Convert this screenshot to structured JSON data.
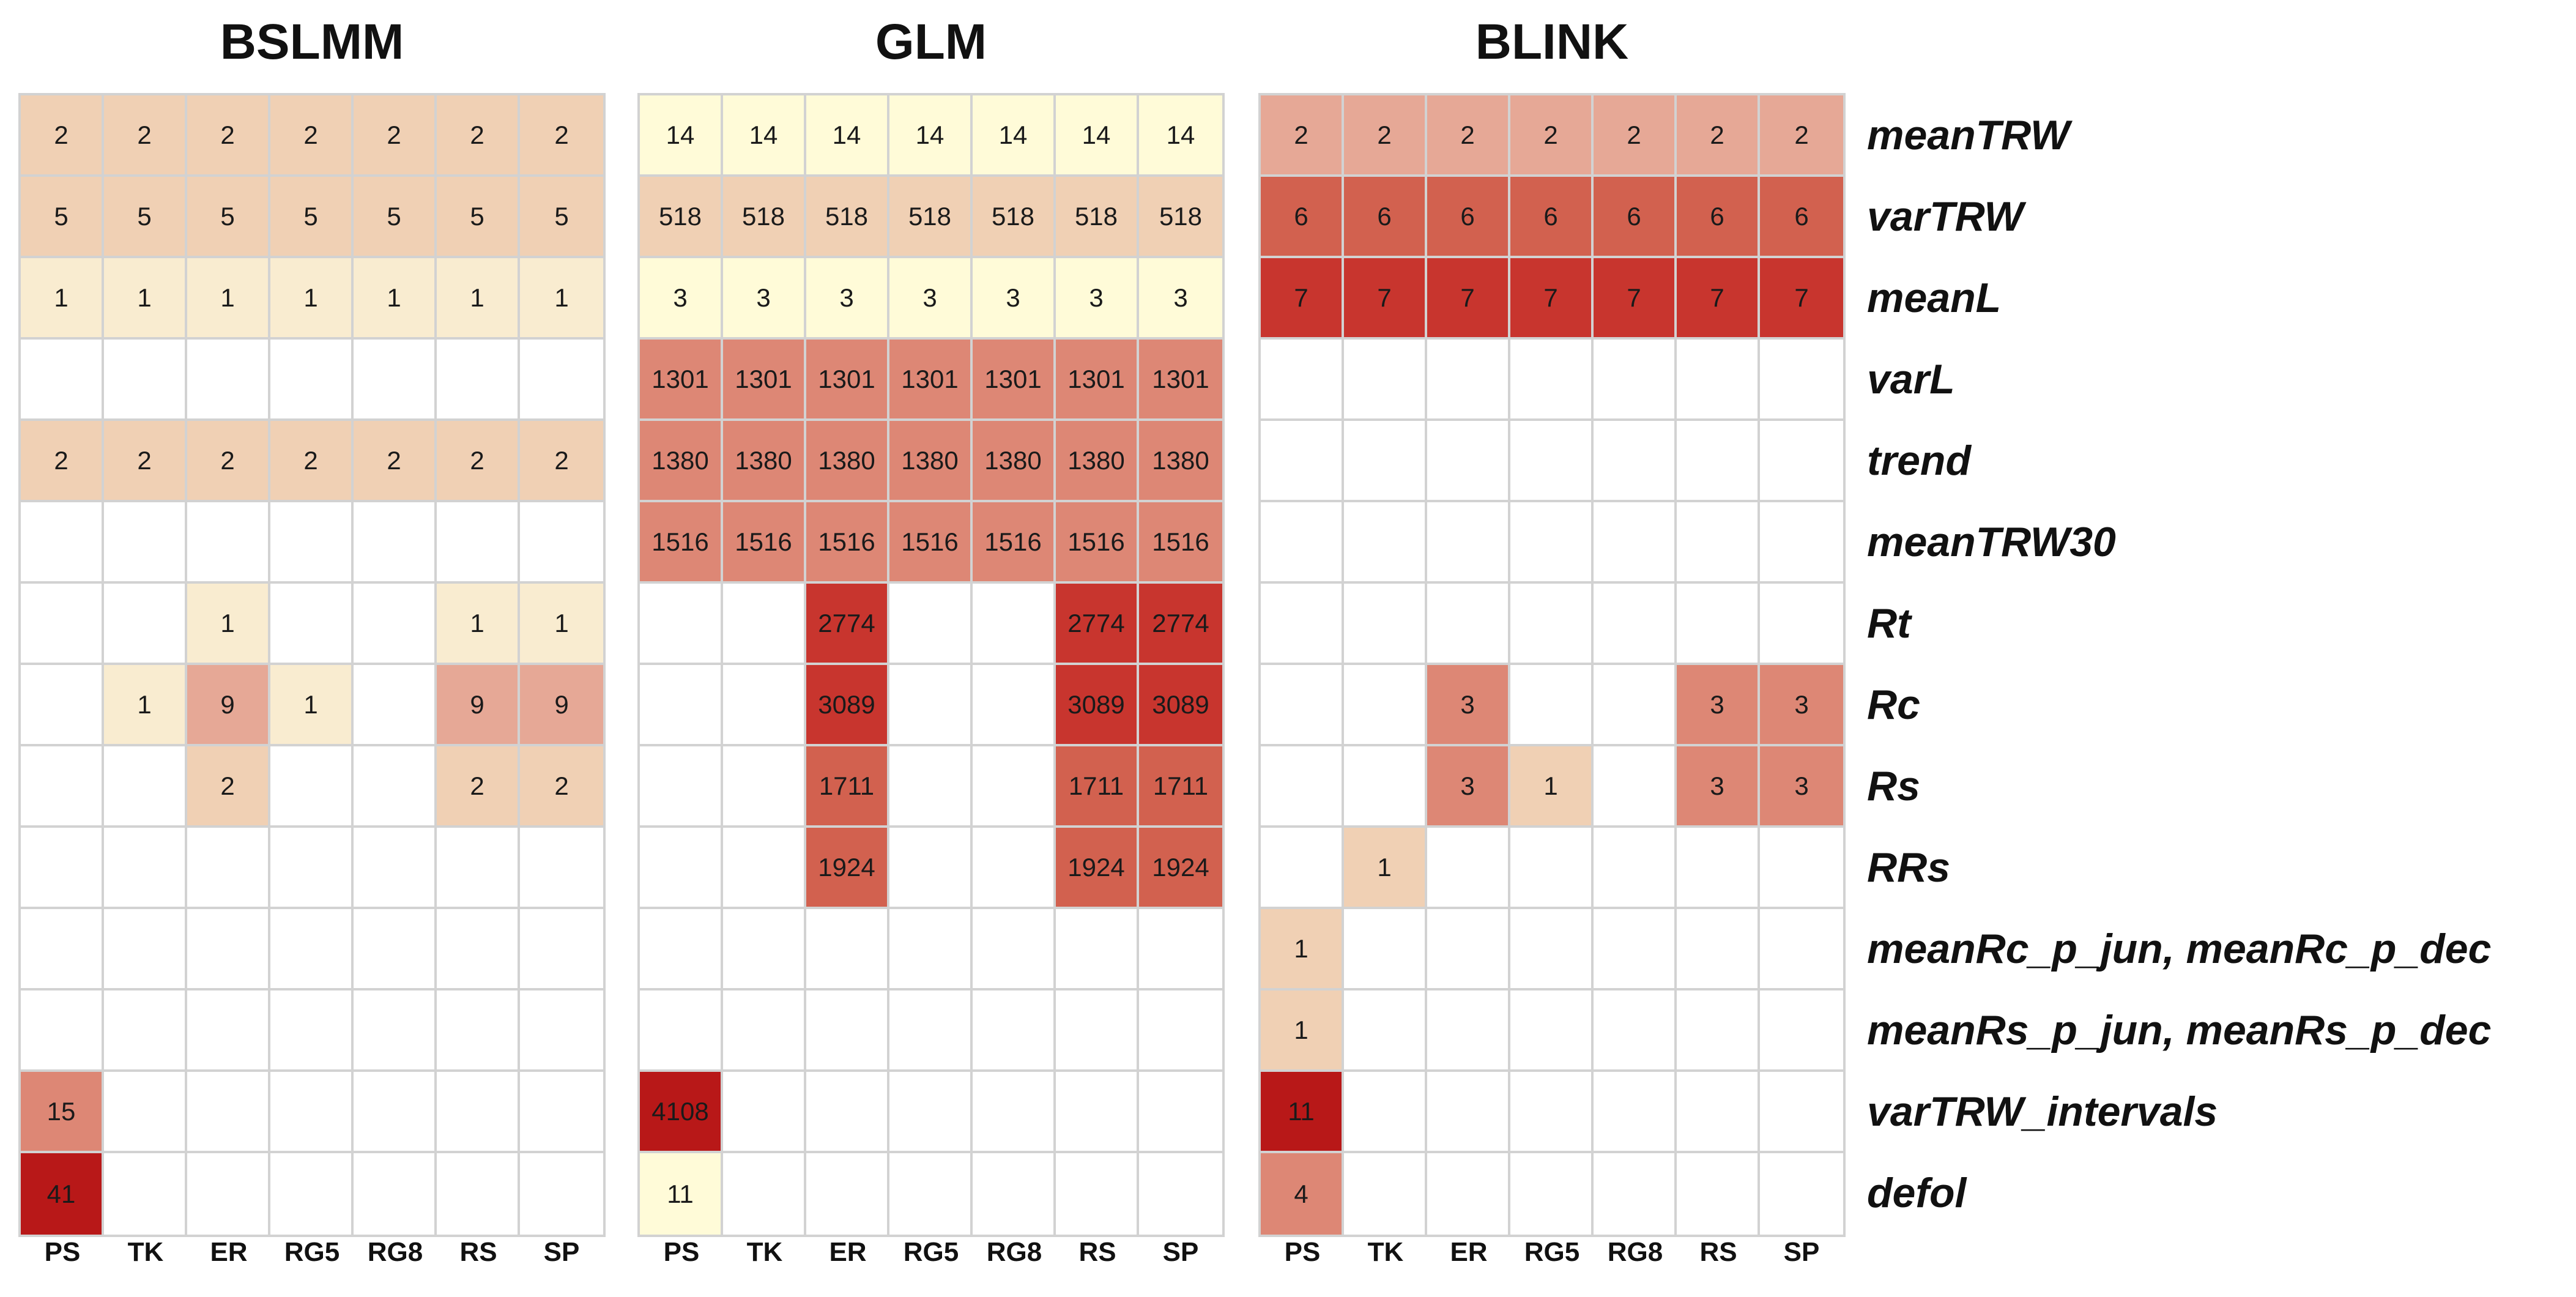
{
  "chart_data": {
    "type": "heatmap",
    "panels": [
      {
        "title": "BSLMM",
        "columns": [
          "PS",
          "TK",
          "ER",
          "RG5",
          "RG8",
          "RS",
          "SP"
        ],
        "rows": [
          [
            "2",
            "2",
            "2",
            "2",
            "2",
            "2",
            "2"
          ],
          [
            "5",
            "5",
            "5",
            "5",
            "5",
            "5",
            "5"
          ],
          [
            "1",
            "1",
            "1",
            "1",
            "1",
            "1",
            "1"
          ],
          [
            "",
            "",
            "",
            "",
            "",
            "",
            ""
          ],
          [
            "2",
            "2",
            "2",
            "2",
            "2",
            "2",
            "2"
          ],
          [
            "",
            "",
            "",
            "",
            "",
            "",
            ""
          ],
          [
            "",
            "",
            "1",
            "",
            "",
            "1",
            "1"
          ],
          [
            "",
            "1",
            "9",
            "1",
            "",
            "9",
            "9"
          ],
          [
            "",
            "",
            "2",
            "",
            "",
            "2",
            "2"
          ],
          [
            "",
            "",
            "",
            "",
            "",
            "",
            ""
          ],
          [
            "",
            "",
            "",
            "",
            "",
            "",
            ""
          ],
          [
            "",
            "",
            "",
            "",
            "",
            "",
            ""
          ],
          [
            "15",
            "",
            "",
            "",
            "",
            "",
            ""
          ],
          [
            "41",
            "",
            "",
            "",
            "",
            "",
            ""
          ]
        ]
      },
      {
        "title": "GLM",
        "columns": [
          "PS",
          "TK",
          "ER",
          "RG5",
          "RG8",
          "RS",
          "SP"
        ],
        "rows": [
          [
            "14",
            "14",
            "14",
            "14",
            "14",
            "14",
            "14"
          ],
          [
            "518",
            "518",
            "518",
            "518",
            "518",
            "518",
            "518"
          ],
          [
            "3",
            "3",
            "3",
            "3",
            "3",
            "3",
            "3"
          ],
          [
            "1301",
            "1301",
            "1301",
            "1301",
            "1301",
            "1301",
            "1301"
          ],
          [
            "1380",
            "1380",
            "1380",
            "1380",
            "1380",
            "1380",
            "1380"
          ],
          [
            "1516",
            "1516",
            "1516",
            "1516",
            "1516",
            "1516",
            "1516"
          ],
          [
            "",
            "",
            "2774",
            "",
            "",
            "2774",
            "2774"
          ],
          [
            "",
            "",
            "3089",
            "",
            "",
            "3089",
            "3089"
          ],
          [
            "",
            "",
            "1711",
            "",
            "",
            "1711",
            "1711"
          ],
          [
            "",
            "",
            "1924",
            "",
            "",
            "1924",
            "1924"
          ],
          [
            "",
            "",
            "",
            "",
            "",
            "",
            ""
          ],
          [
            "",
            "",
            "",
            "",
            "",
            "",
            ""
          ],
          [
            "4108",
            "",
            "",
            "",
            "",
            "",
            ""
          ],
          [
            "11",
            "",
            "",
            "",
            "",
            "",
            ""
          ]
        ]
      },
      {
        "title": "BLINK",
        "columns": [
          "PS",
          "TK",
          "ER",
          "RG5",
          "RG8",
          "RS",
          "SP"
        ],
        "rows": [
          [
            "2",
            "2",
            "2",
            "2",
            "2",
            "2",
            "2"
          ],
          [
            "6",
            "6",
            "6",
            "6",
            "6",
            "6",
            "6"
          ],
          [
            "7",
            "7",
            "7",
            "7",
            "7",
            "7",
            "7"
          ],
          [
            "",
            "",
            "",
            "",
            "",
            "",
            ""
          ],
          [
            "",
            "",
            "",
            "",
            "",
            "",
            ""
          ],
          [
            "",
            "",
            "",
            "",
            "",
            "",
            ""
          ],
          [
            "",
            "",
            "",
            "",
            "",
            "",
            ""
          ],
          [
            "",
            "",
            "3",
            "",
            "",
            "3",
            "3"
          ],
          [
            "",
            "",
            "3",
            "1",
            "",
            "3",
            "3"
          ],
          [
            "",
            "1",
            "",
            "",
            "",
            "",
            ""
          ],
          [
            "1",
            "",
            "",
            "",
            "",
            "",
            ""
          ],
          [
            "1",
            "",
            "",
            "",
            "",
            "",
            ""
          ],
          [
            "11",
            "",
            "",
            "",
            "",
            "",
            ""
          ],
          [
            "4",
            "",
            "",
            "",
            "",
            "",
            ""
          ]
        ]
      }
    ],
    "row_labels": [
      "meanTRW",
      "varTRW",
      "meanL",
      "varL",
      "trend",
      "meanTRW30",
      "Rt",
      "Rc",
      "Rs",
      "RRs",
      "meanRc_p_jun, meanRc_p_dec",
      "meanRs_p_jun, meanRs_p_dec",
      "varTRW_intervals",
      "defol"
    ],
    "color_scale": [
      "#fffbd8",
      "#f9ecd0",
      "#f0d0b4",
      "#e6a896",
      "#dd8775",
      "#d2614f",
      "#c8352e",
      "#b81818"
    ]
  }
}
